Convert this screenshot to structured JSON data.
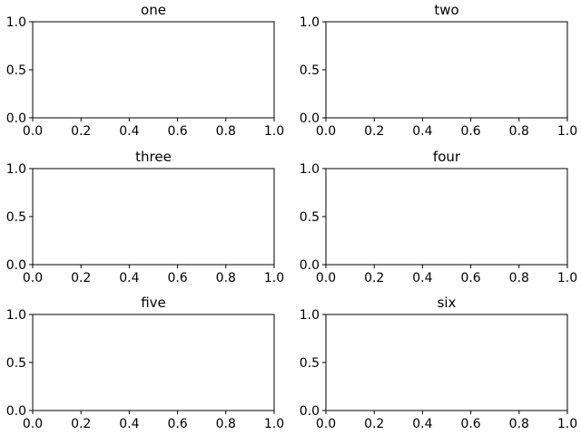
{
  "chart_data": [
    {
      "type": "scatter",
      "title": "one",
      "xlabel": "",
      "ylabel": "",
      "xlim": [
        0,
        1
      ],
      "ylim": [
        0,
        1
      ],
      "xticks": [
        0.0,
        0.2,
        0.4,
        0.6,
        0.8,
        1.0
      ],
      "xtick_labels": [
        "0.0",
        "0.2",
        "0.4",
        "0.6",
        "0.8",
        "1.0"
      ],
      "yticks": [
        0.0,
        0.5,
        1.0
      ],
      "ytick_labels": [
        "0.0",
        "0.5",
        "1.0"
      ],
      "grid": false,
      "series": []
    },
    {
      "type": "scatter",
      "title": "two",
      "xlabel": "",
      "ylabel": "",
      "xlim": [
        0,
        1
      ],
      "ylim": [
        0,
        1
      ],
      "xticks": [
        0.0,
        0.2,
        0.4,
        0.6,
        0.8,
        1.0
      ],
      "xtick_labels": [
        "0.0",
        "0.2",
        "0.4",
        "0.6",
        "0.8",
        "1.0"
      ],
      "yticks": [
        0.0,
        0.5,
        1.0
      ],
      "ytick_labels": [
        "0.0",
        "0.5",
        "1.0"
      ],
      "grid": false,
      "series": []
    },
    {
      "type": "scatter",
      "title": "three",
      "xlabel": "",
      "ylabel": "",
      "xlim": [
        0,
        1
      ],
      "ylim": [
        0,
        1
      ],
      "xticks": [
        0.0,
        0.2,
        0.4,
        0.6,
        0.8,
        1.0
      ],
      "xtick_labels": [
        "0.0",
        "0.2",
        "0.4",
        "0.6",
        "0.8",
        "1.0"
      ],
      "yticks": [
        0.0,
        0.5,
        1.0
      ],
      "ytick_labels": [
        "0.0",
        "0.5",
        "1.0"
      ],
      "grid": false,
      "series": []
    },
    {
      "type": "scatter",
      "title": "four",
      "xlabel": "",
      "ylabel": "",
      "xlim": [
        0,
        1
      ],
      "ylim": [
        0,
        1
      ],
      "xticks": [
        0.0,
        0.2,
        0.4,
        0.6,
        0.8,
        1.0
      ],
      "xtick_labels": [
        "0.0",
        "0.2",
        "0.4",
        "0.6",
        "0.8",
        "1.0"
      ],
      "yticks": [
        0.0,
        0.5,
        1.0
      ],
      "ytick_labels": [
        "0.0",
        "0.5",
        "1.0"
      ],
      "grid": false,
      "series": []
    },
    {
      "type": "scatter",
      "title": "five",
      "xlabel": "",
      "ylabel": "",
      "xlim": [
        0,
        1
      ],
      "ylim": [
        0,
        1
      ],
      "xticks": [
        0.0,
        0.2,
        0.4,
        0.6,
        0.8,
        1.0
      ],
      "xtick_labels": [
        "0.0",
        "0.2",
        "0.4",
        "0.6",
        "0.8",
        "1.0"
      ],
      "yticks": [
        0.0,
        0.5,
        1.0
      ],
      "ytick_labels": [
        "0.0",
        "0.5",
        "1.0"
      ],
      "grid": false,
      "series": []
    },
    {
      "type": "scatter",
      "title": "six",
      "xlabel": "",
      "ylabel": "",
      "xlim": [
        0,
        1
      ],
      "ylim": [
        0,
        1
      ],
      "xticks": [
        0.0,
        0.2,
        0.4,
        0.6,
        0.8,
        1.0
      ],
      "xtick_labels": [
        "0.0",
        "0.2",
        "0.4",
        "0.6",
        "0.8",
        "1.0"
      ],
      "yticks": [
        0.0,
        0.5,
        1.0
      ],
      "ytick_labels": [
        "0.0",
        "0.5",
        "1.0"
      ],
      "grid": false,
      "series": []
    }
  ]
}
